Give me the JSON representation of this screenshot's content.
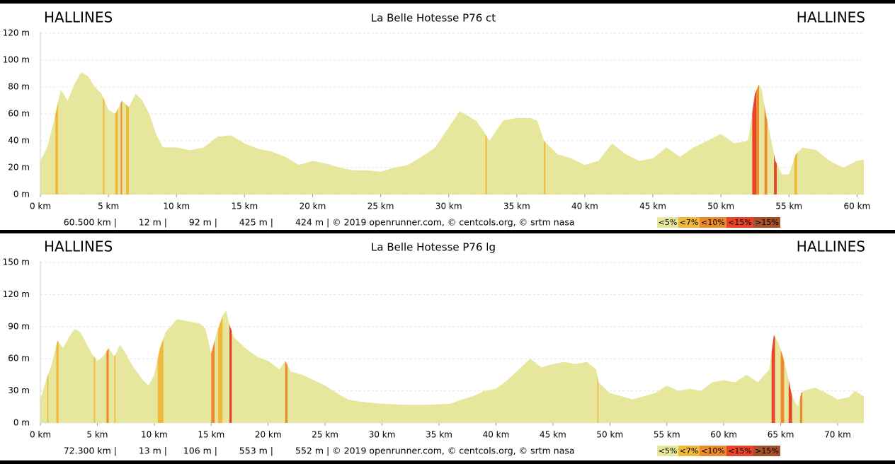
{
  "chart_data": [
    {
      "type": "area",
      "title": "La Belle Hotesse P76 ct",
      "start_label": "HALLINES",
      "end_label": "HALLINES",
      "color": "#e6e69c",
      "x": [
        0,
        0.5,
        1,
        1.5,
        2,
        2.5,
        3,
        3.5,
        4,
        4.5,
        5,
        5.5,
        6,
        6.5,
        7,
        7.5,
        8,
        8.5,
        9,
        10,
        11,
        12,
        13,
        14,
        15,
        16,
        17,
        18,
        19,
        20,
        21,
        22,
        23,
        24,
        25,
        26,
        27,
        28,
        29,
        30,
        30.8,
        31.5,
        32,
        32.5,
        33,
        34,
        35,
        36,
        36.5,
        37,
        38,
        39,
        40,
        41,
        42,
        43,
        44,
        45,
        46,
        47,
        48,
        49,
        50,
        51,
        52,
        52.5,
        52.8,
        53,
        53.3,
        53.7,
        54,
        54.5,
        55,
        55.5,
        56,
        57,
        58,
        59,
        60,
        60.5
      ],
      "values": [
        25,
        35,
        55,
        78,
        70,
        82,
        91,
        88,
        80,
        75,
        63,
        60,
        70,
        65,
        75,
        70,
        60,
        45,
        35,
        35,
        33,
        35,
        43,
        44,
        38,
        34,
        32,
        28,
        22,
        25,
        23,
        20,
        18,
        18,
        17,
        20,
        22,
        28,
        35,
        50,
        62,
        58,
        55,
        48,
        40,
        55,
        57,
        57,
        55,
        40,
        30,
        27,
        22,
        25,
        38,
        30,
        25,
        27,
        35,
        28,
        35,
        40,
        45,
        38,
        40,
        75,
        82,
        78,
        60,
        40,
        25,
        15,
        15,
        30,
        35,
        33,
        25,
        20,
        25,
        26
      ],
      "steep": [
        {
          "start": 1.1,
          "end": 1.3,
          "color": "#f0b93c"
        },
        {
          "start": 4.6,
          "end": 4.7,
          "color": "#f0b93c"
        },
        {
          "start": 5.5,
          "end": 5.7,
          "color": "#f0b93c"
        },
        {
          "start": 5.9,
          "end": 6.0,
          "color": "#eb8a2e"
        },
        {
          "start": 6.3,
          "end": 6.5,
          "color": "#f0b93c"
        },
        {
          "start": 32.7,
          "end": 32.8,
          "color": "#f0b93c"
        },
        {
          "start": 37.0,
          "end": 37.1,
          "color": "#f0b93c"
        },
        {
          "start": 52.3,
          "end": 52.6,
          "color": "#e8442a"
        },
        {
          "start": 52.6,
          "end": 52.8,
          "color": "#eb8a2e"
        },
        {
          "start": 53.2,
          "end": 53.4,
          "color": "#eb8a2e"
        },
        {
          "start": 53.9,
          "end": 54.1,
          "color": "#e8442a"
        },
        {
          "start": 55.4,
          "end": 55.6,
          "color": "#f0b93c"
        }
      ],
      "xlim": [
        0,
        60.5
      ],
      "xticks": [
        {
          "value": 0,
          "label": "0 km"
        },
        {
          "value": 5,
          "label": "5 km"
        },
        {
          "value": 10,
          "label": "10 km"
        },
        {
          "value": 15,
          "label": "15 km"
        },
        {
          "value": 20,
          "label": "20 km"
        },
        {
          "value": 25,
          "label": "25 km"
        },
        {
          "value": 30,
          "label": "30 km"
        },
        {
          "value": 35,
          "label": "35 km"
        },
        {
          "value": 40,
          "label": "40 km"
        },
        {
          "value": 45,
          "label": "45 km"
        },
        {
          "value": 50,
          "label": "50 km"
        },
        {
          "value": 55,
          "label": "55 km"
        },
        {
          "value": 60,
          "label": "60 km"
        }
      ],
      "ylim": [
        0,
        120
      ],
      "yticks": [
        {
          "value": 0,
          "label": "0 m"
        },
        {
          "value": 20,
          "label": "20 m"
        },
        {
          "value": 40,
          "label": "40 m"
        },
        {
          "value": 60,
          "label": "60 m"
        },
        {
          "value": 80,
          "label": "80 m"
        },
        {
          "value": 100,
          "label": "100 m"
        },
        {
          "value": 120,
          "label": "120 m"
        }
      ],
      "grid": true,
      "footer": [
        "60.500 km |",
        "12 m |",
        "92 m |",
        "425 m |",
        "424 m | © 2019 openrunner.com, © centcols.org, © srtm nasa"
      ],
      "legend": [
        {
          "label": "<5%",
          "color": "#e6e69c"
        },
        {
          "label": "<7%",
          "color": "#f0b93c"
        },
        {
          "label": "<10%",
          "color": "#eb8a2e"
        },
        {
          "label": "<15%",
          "color": "#e8442a"
        },
        {
          "label": ">15%",
          "color": "#a5502a"
        }
      ]
    },
    {
      "type": "area",
      "title": "La Belle Hotesse P76 lg",
      "start_label": "HALLINES",
      "end_label": "HALLINES",
      "color": "#e6e69c",
      "x": [
        0,
        0.5,
        1,
        1.5,
        2,
        2.5,
        3,
        3.5,
        4,
        4.5,
        5,
        5.5,
        6,
        6.5,
        7,
        7.5,
        8,
        9,
        9.5,
        10,
        10.5,
        11,
        12,
        13,
        14,
        14.5,
        15,
        15.5,
        16,
        16.3,
        16.6,
        17,
        18,
        19,
        20,
        21,
        21.5,
        22,
        23,
        24,
        25,
        26,
        27,
        28,
        30,
        32,
        34,
        36,
        37,
        38,
        39,
        40,
        41,
        42,
        43,
        44,
        45,
        46,
        47,
        48,
        48.8,
        49,
        50,
        51,
        52,
        53,
        54,
        55,
        56,
        57,
        58,
        59,
        60,
        61,
        62,
        63,
        64,
        64.4,
        64.8,
        65.2,
        65.6,
        66,
        66.5,
        66.8,
        67,
        68,
        69,
        70,
        71,
        71.5,
        72.3
      ],
      "values": [
        22,
        40,
        55,
        77,
        70,
        80,
        88,
        85,
        75,
        65,
        58,
        62,
        70,
        62,
        73,
        65,
        55,
        40,
        35,
        45,
        70,
        85,
        97,
        95,
        93,
        88,
        65,
        85,
        100,
        105,
        92,
        80,
        70,
        62,
        58,
        50,
        58,
        48,
        45,
        40,
        35,
        28,
        22,
        20,
        18,
        17,
        17,
        18,
        22,
        25,
        30,
        32,
        40,
        50,
        60,
        52,
        55,
        57,
        55,
        57,
        50,
        38,
        28,
        25,
        22,
        25,
        28,
        35,
        30,
        32,
        30,
        38,
        40,
        38,
        45,
        38,
        50,
        82,
        75,
        62,
        45,
        25,
        15,
        28,
        30,
        33,
        28,
        22,
        24,
        30,
        25
      ],
      "steep": [
        {
          "start": 0.6,
          "end": 0.7,
          "color": "#f0b93c"
        },
        {
          "start": 1.4,
          "end": 1.6,
          "color": "#f0b93c"
        },
        {
          "start": 4.7,
          "end": 4.8,
          "color": "#f0b93c"
        },
        {
          "start": 5.8,
          "end": 6.0,
          "color": "#eb8a2e"
        },
        {
          "start": 6.5,
          "end": 6.6,
          "color": "#f0b93c"
        },
        {
          "start": 10.3,
          "end": 10.8,
          "color": "#f0b93c"
        },
        {
          "start": 15.0,
          "end": 15.3,
          "color": "#eb8a2e"
        },
        {
          "start": 15.6,
          "end": 16.0,
          "color": "#f0b93c"
        },
        {
          "start": 16.6,
          "end": 16.8,
          "color": "#e8442a"
        },
        {
          "start": 21.5,
          "end": 21.7,
          "color": "#eb8a2e"
        },
        {
          "start": 48.9,
          "end": 49.0,
          "color": "#f0b93c"
        },
        {
          "start": 64.2,
          "end": 64.5,
          "color": "#e8442a"
        },
        {
          "start": 65.0,
          "end": 65.3,
          "color": "#eb8a2e"
        },
        {
          "start": 65.7,
          "end": 66.0,
          "color": "#e8442a"
        },
        {
          "start": 66.7,
          "end": 66.9,
          "color": "#eb8a2e"
        }
      ],
      "xlim": [
        0,
        72.3
      ],
      "xticks": [
        {
          "value": 0,
          "label": "0 km"
        },
        {
          "value": 5,
          "label": "5 km"
        },
        {
          "value": 10,
          "label": "10 km"
        },
        {
          "value": 15,
          "label": "15 km"
        },
        {
          "value": 20,
          "label": "20 km"
        },
        {
          "value": 25,
          "label": "25 km"
        },
        {
          "value": 30,
          "label": "30 km"
        },
        {
          "value": 35,
          "label": "35 km"
        },
        {
          "value": 40,
          "label": "40 km"
        },
        {
          "value": 45,
          "label": "45 km"
        },
        {
          "value": 50,
          "label": "50 km"
        },
        {
          "value": 55,
          "label": "55 km"
        },
        {
          "value": 60,
          "label": "60 km"
        },
        {
          "value": 65,
          "label": "65 km"
        },
        {
          "value": 70,
          "label": "70 km"
        }
      ],
      "ylim": [
        0,
        150
      ],
      "yticks": [
        {
          "value": 0,
          "label": "0 m"
        },
        {
          "value": 30,
          "label": "30 m"
        },
        {
          "value": 60,
          "label": "60 m"
        },
        {
          "value": 90,
          "label": "90 m"
        },
        {
          "value": 120,
          "label": "120 m"
        },
        {
          "value": 150,
          "label": "150 m"
        }
      ],
      "grid": true,
      "footer": [
        "72.300 km |",
        "13 m |",
        "106 m |",
        "553 m |",
        "552 m | © 2019 openrunner.com, © centcols.org, © srtm nasa"
      ],
      "legend": [
        {
          "label": "<5%",
          "color": "#e6e69c"
        },
        {
          "label": "<7%",
          "color": "#f0b93c"
        },
        {
          "label": "<10%",
          "color": "#eb8a2e"
        },
        {
          "label": "<15%",
          "color": "#e8442a"
        },
        {
          "label": ">15%",
          "color": "#a5502a"
        }
      ]
    }
  ]
}
